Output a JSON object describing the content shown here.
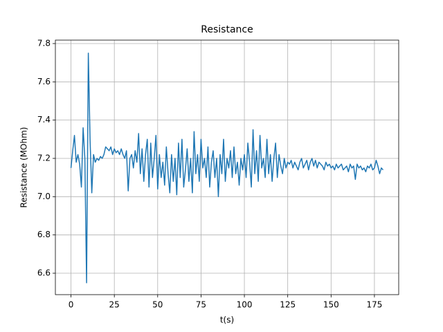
{
  "chart_data": {
    "type": "line",
    "title": "Resistance",
    "xlabel": "t(s)",
    "ylabel": "Resistance (MOhm)",
    "x": [
      0,
      1,
      2,
      3,
      4,
      5,
      6,
      7,
      8,
      9,
      10,
      11,
      12,
      13,
      14,
      15,
      16,
      17,
      18,
      19,
      20,
      21,
      22,
      23,
      24,
      25,
      26,
      27,
      28,
      29,
      30,
      31,
      32,
      33,
      34,
      35,
      36,
      37,
      38,
      39,
      40,
      41,
      42,
      43,
      44,
      45,
      46,
      47,
      48,
      49,
      50,
      51,
      52,
      53,
      54,
      55,
      56,
      57,
      58,
      59,
      60,
      61,
      62,
      63,
      64,
      65,
      66,
      67,
      68,
      69,
      70,
      71,
      72,
      73,
      74,
      75,
      76,
      77,
      78,
      79,
      80,
      81,
      82,
      83,
      84,
      85,
      86,
      87,
      88,
      89,
      90,
      91,
      92,
      93,
      94,
      95,
      96,
      97,
      98,
      99,
      100,
      101,
      102,
      103,
      104,
      105,
      106,
      107,
      108,
      109,
      110,
      111,
      112,
      113,
      114,
      115,
      116,
      117,
      118,
      119,
      120,
      121,
      122,
      123,
      124,
      125,
      126,
      127,
      128,
      129,
      130,
      131,
      132,
      133,
      134,
      135,
      136,
      137,
      138,
      139,
      140,
      141,
      142,
      143,
      144,
      145,
      146,
      147,
      148,
      149,
      150,
      151,
      152,
      153,
      154,
      155,
      156,
      157,
      158,
      159,
      160,
      161,
      162,
      163,
      164,
      165,
      166,
      167,
      168,
      169,
      170,
      171,
      172,
      173,
      174,
      175,
      176,
      177,
      178,
      179,
      180
    ],
    "series": [
      {
        "name": "Resistance",
        "color": "#1f77b4",
        "values": [
          7.15,
          7.24,
          7.32,
          7.18,
          7.22,
          7.17,
          7.05,
          7.36,
          7.2,
          6.55,
          7.75,
          7.3,
          7.02,
          7.22,
          7.18,
          7.2,
          7.19,
          7.21,
          7.2,
          7.22,
          7.26,
          7.25,
          7.24,
          7.26,
          7.22,
          7.25,
          7.23,
          7.24,
          7.22,
          7.25,
          7.22,
          7.2,
          7.24,
          7.03,
          7.2,
          7.22,
          7.15,
          7.24,
          7.18,
          7.33,
          7.12,
          7.25,
          7.08,
          7.22,
          7.3,
          7.05,
          7.28,
          7.1,
          7.2,
          7.32,
          7.04,
          7.22,
          7.1,
          7.18,
          7.06,
          7.26,
          7.12,
          7.02,
          7.22,
          7.08,
          7.2,
          7.01,
          7.28,
          7.1,
          7.3,
          7.05,
          7.14,
          7.25,
          7.08,
          7.2,
          7.02,
          7.34,
          7.12,
          7.22,
          7.08,
          7.3,
          7.15,
          7.2,
          7.1,
          7.26,
          7.05,
          7.18,
          7.24,
          7.1,
          7.2,
          7.0,
          7.22,
          7.12,
          7.3,
          7.08,
          7.2,
          7.15,
          7.24,
          7.1,
          7.26,
          7.12,
          7.18,
          7.06,
          7.2,
          7.14,
          7.22,
          7.1,
          7.28,
          7.18,
          7.05,
          7.35,
          7.12,
          7.24,
          7.08,
          7.32,
          7.15,
          7.2,
          7.1,
          7.3,
          7.12,
          7.22,
          7.08,
          7.2,
          7.28,
          7.1,
          7.22,
          7.16,
          7.12,
          7.2,
          7.15,
          7.18,
          7.17,
          7.19,
          7.15,
          7.18,
          7.16,
          7.14,
          7.18,
          7.2,
          7.15,
          7.17,
          7.19,
          7.14,
          7.18,
          7.2,
          7.16,
          7.19,
          7.15,
          7.18,
          7.17,
          7.16,
          7.14,
          7.18,
          7.16,
          7.17,
          7.15,
          7.16,
          7.14,
          7.17,
          7.15,
          7.16,
          7.17,
          7.14,
          7.15,
          7.16,
          7.13,
          7.17,
          7.15,
          7.16,
          7.09,
          7.17,
          7.15,
          7.16,
          7.14,
          7.15,
          7.13,
          7.16,
          7.15,
          7.17,
          7.14,
          7.15,
          7.19,
          7.16,
          7.12,
          7.15,
          7.14
        ]
      }
    ],
    "xlim": [
      -9,
      189
    ],
    "ylim": [
      6.488,
      7.818
    ],
    "xticks": [
      0,
      25,
      50,
      75,
      100,
      125,
      150,
      175
    ],
    "yticks": [
      6.6,
      6.8,
      {
        "value": 7,
        "label": "7.0"
      },
      7.2,
      7.4,
      7.6,
      7.8
    ],
    "grid": true
  }
}
